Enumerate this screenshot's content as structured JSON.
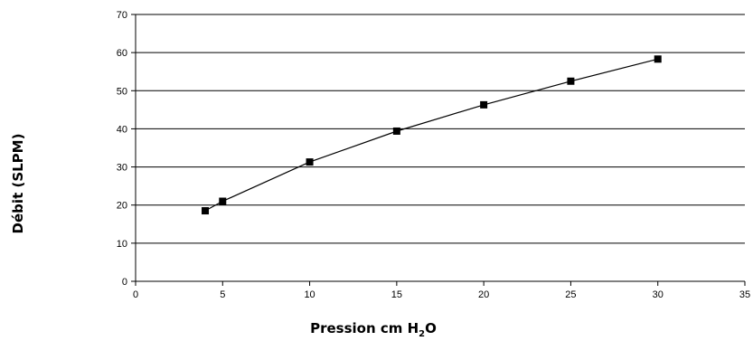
{
  "chart_data": {
    "type": "line",
    "xlabel_parts": [
      "Pression cm H",
      "2",
      "O"
    ],
    "ylabel": "Débit (SLPM)",
    "xlim": [
      0,
      35
    ],
    "ylim": [
      0,
      70
    ],
    "x_ticks": [
      0,
      5,
      10,
      15,
      20,
      25,
      30,
      35
    ],
    "y_ticks": [
      0,
      10,
      20,
      30,
      40,
      50,
      60,
      70
    ],
    "grid": "horizontal",
    "legend": "none",
    "marker": "square",
    "line_color": "#000000",
    "series": [
      {
        "x": [
          4,
          5,
          10,
          15,
          20,
          25,
          30
        ],
        "y": [
          18.5,
          21,
          31.3,
          39.4,
          46.3,
          52.5,
          58.3
        ]
      }
    ]
  }
}
